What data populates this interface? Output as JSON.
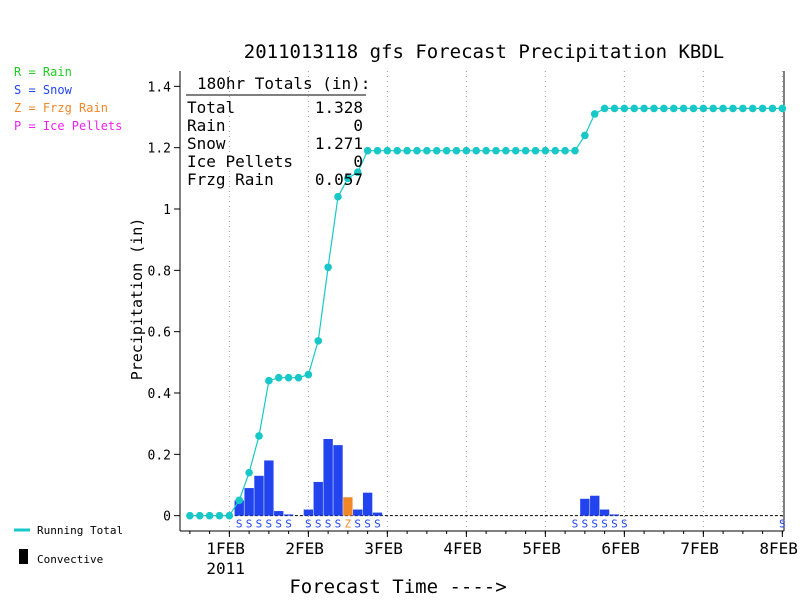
{
  "chart_data": {
    "type": "bar",
    "title": "2011013118 gfs Forecast Precipitation KBDL",
    "xlabel": "Forecast Time ---->",
    "ylabel": "Precipitation (in)",
    "ylim": [
      -0.05,
      1.45
    ],
    "y_ticks": [
      0,
      0.2,
      0.4,
      0.6,
      0.8,
      1,
      1.2,
      1.4
    ],
    "y_tick_labels": [
      "0",
      "0.2",
      "0.4",
      "0.6",
      "0.8",
      "1",
      "1.2",
      "1.4"
    ],
    "x_ticks": [
      {
        "t": 12,
        "label": "1FEB",
        "sub": "2011"
      },
      {
        "t": 36,
        "label": "2FEB",
        "sub": ""
      },
      {
        "t": 60,
        "label": "3FEB",
        "sub": ""
      },
      {
        "t": 84,
        "label": "4FEB",
        "sub": ""
      },
      {
        "t": 108,
        "label": "5FEB",
        "sub": ""
      },
      {
        "t": 132,
        "label": "6FEB",
        "sub": ""
      },
      {
        "t": 156,
        "label": "7FEB",
        "sub": ""
      },
      {
        "t": 180,
        "label": "8FEB",
        "sub": ""
      }
    ],
    "xlim": [
      -3,
      180.5
    ],
    "grid": "vertical-dotted",
    "legend": [
      {
        "symbol": "R",
        "label": "R = Rain",
        "color": "#22cc22"
      },
      {
        "symbol": "S",
        "label": "S = Snow",
        "color": "#2244ee"
      },
      {
        "symbol": "Z",
        "label": "Z = Frzg Rain",
        "color": "#f08828"
      },
      {
        "symbol": "P",
        "label": "P = Ice Pellets",
        "color": "#ee22ee"
      }
    ],
    "legend_bottom": [
      {
        "label": "Running Total",
        "color": "#18c8c8",
        "kind": "line"
      },
      {
        "label": "Convective",
        "color": "#000000",
        "kind": "box"
      }
    ],
    "totals": {
      "header": "180hr Totals (in):",
      "rows": [
        {
          "label": "Total",
          "value": "1.328"
        },
        {
          "label": "Rain",
          "value": "0"
        },
        {
          "label": "Snow",
          "value": "1.271"
        },
        {
          "label": "Ice Pellets",
          "value": "0"
        },
        {
          "label": "Frzg Rain",
          "value": "0.057"
        }
      ]
    },
    "series": [
      {
        "name": "Running Total",
        "color": "#18c8c8",
        "x": [
          0,
          3,
          6,
          9,
          12,
          15,
          18,
          21,
          24,
          27,
          30,
          33,
          36,
          39,
          42,
          45,
          48,
          51,
          54,
          57,
          60,
          63,
          66,
          69,
          72,
          75,
          78,
          81,
          84,
          87,
          90,
          93,
          96,
          99,
          102,
          105,
          108,
          111,
          114,
          117,
          120,
          123,
          126,
          129,
          132,
          135,
          138,
          141,
          144,
          147,
          150,
          153,
          156,
          159,
          162,
          165,
          168,
          171,
          174,
          177,
          180
        ],
        "values": [
          0,
          0,
          0,
          0,
          0,
          0.05,
          0.14,
          0.26,
          0.44,
          0.45,
          0.45,
          0.45,
          0.46,
          0.57,
          0.81,
          1.04,
          1.1,
          1.12,
          1.19,
          1.19,
          1.19,
          1.19,
          1.19,
          1.19,
          1.19,
          1.19,
          1.19,
          1.19,
          1.19,
          1.19,
          1.19,
          1.19,
          1.19,
          1.19,
          1.19,
          1.19,
          1.19,
          1.19,
          1.19,
          1.19,
          1.24,
          1.31,
          1.328,
          1.328,
          1.328,
          1.328,
          1.328,
          1.328,
          1.328,
          1.328,
          1.328,
          1.328,
          1.328,
          1.328,
          1.328,
          1.328,
          1.328,
          1.328,
          1.328,
          1.328,
          1.328
        ]
      }
    ],
    "bars": [
      {
        "x": 15,
        "value": 0.05,
        "type": "S"
      },
      {
        "x": 18,
        "value": 0.09,
        "type": "S"
      },
      {
        "x": 21,
        "value": 0.13,
        "type": "S"
      },
      {
        "x": 24,
        "value": 0.18,
        "type": "S"
      },
      {
        "x": 27,
        "value": 0.015,
        "type": "S"
      },
      {
        "x": 30,
        "value": 0.004,
        "type": "S"
      },
      {
        "x": 36,
        "value": 0.02,
        "type": "S"
      },
      {
        "x": 39,
        "value": 0.11,
        "type": "S"
      },
      {
        "x": 42,
        "value": 0.25,
        "type": "S"
      },
      {
        "x": 45,
        "value": 0.23,
        "type": "S"
      },
      {
        "x": 48,
        "value": 0.06,
        "type": "Z"
      },
      {
        "x": 51,
        "value": 0.02,
        "type": "S"
      },
      {
        "x": 54,
        "value": 0.075,
        "type": "S"
      },
      {
        "x": 57,
        "value": 0.01,
        "type": "S"
      },
      {
        "x": 120,
        "value": 0.055,
        "type": "S"
      },
      {
        "x": 123,
        "value": 0.065,
        "type": "S"
      },
      {
        "x": 126,
        "value": 0.02,
        "type": "S"
      },
      {
        "x": 129,
        "value": 0.004,
        "type": "S"
      }
    ],
    "type_marks": [
      {
        "x": 15,
        "text": "S"
      },
      {
        "x": 18,
        "text": "S"
      },
      {
        "x": 21,
        "text": "S"
      },
      {
        "x": 24,
        "text": "S"
      },
      {
        "x": 27,
        "text": "S"
      },
      {
        "x": 30,
        "text": "S"
      },
      {
        "x": 36,
        "text": "S"
      },
      {
        "x": 39,
        "text": "S"
      },
      {
        "x": 42,
        "text": "S"
      },
      {
        "x": 45,
        "text": "S"
      },
      {
        "x": 48,
        "text": "Z"
      },
      {
        "x": 51,
        "text": "S"
      },
      {
        "x": 54,
        "text": "S"
      },
      {
        "x": 57,
        "text": "S"
      },
      {
        "x": 117,
        "text": "S"
      },
      {
        "x": 120,
        "text": "S"
      },
      {
        "x": 123,
        "text": "S"
      },
      {
        "x": 126,
        "text": "S"
      },
      {
        "x": 129,
        "text": "S"
      },
      {
        "x": 132,
        "text": "S"
      },
      {
        "x": 180,
        "text": "S"
      }
    ]
  }
}
